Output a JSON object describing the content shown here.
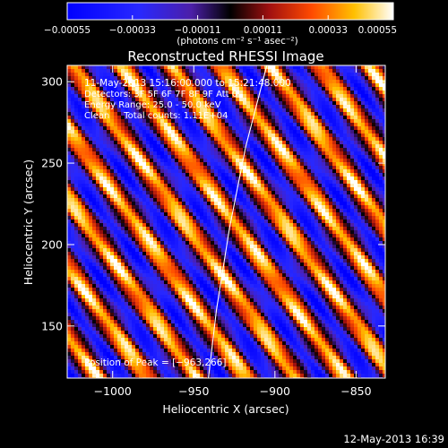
{
  "chart_data": {
    "type": "heatmap",
    "title": "Reconstructed RHESSI Image",
    "xlabel": "Heliocentric X (arcsec)",
    "ylabel": "Heliocentric Y (arcsec)",
    "xlim": [
      -1028,
      -832
    ],
    "ylim": [
      118,
      310
    ],
    "xticks": [
      -1000,
      -950,
      -900,
      -850
    ],
    "xtick_labels": [
      "−1000",
      "−950",
      "−900",
      "−850"
    ],
    "yticks": [
      150,
      200,
      250,
      300
    ],
    "ytick_labels": [
      "150",
      "200",
      "250",
      "300"
    ],
    "colorbar": {
      "min": -0.00055,
      "max": 0.00055,
      "ticks": [
        -0.00055,
        -0.00033,
        -0.00011,
        0.00011,
        0.00033,
        0.00055
      ],
      "tick_labels": [
        "−0.00055",
        "−0.00033",
        "−0.00011",
        "0.00011",
        "0.00033",
        "0.00055"
      ],
      "unit_label": "(photons cm⁻² s⁻¹ asec⁻²)"
    },
    "annotations": [
      "11-May-2013 15:16:00.000 to 15:21:48.000",
      "Detectors: 3F 5F 6F 7F 8F 9F  Att 0",
      "Energy Range: 25.0 - 50.0 keV",
      "Clean     Total counts: 1.11E+04"
    ],
    "peak_label": "Position of Peak = [−963,266]",
    "peak_position": [
      -963,
      266
    ],
    "limb_curve": [
      [
        -941,
        118
      ],
      [
        -936,
        160
      ],
      [
        -928,
        210
      ],
      [
        -918,
        260
      ],
      [
        -905,
        310
      ]
    ],
    "grid": false,
    "pattern": {
      "stripe_period_arcsec": 30.5,
      "stripe_direction": "diagonal, high-left to low-right",
      "peak_value_fraction": 1.0
    }
  },
  "footer": {
    "timestamp": "12-May-2013 16:39"
  },
  "colors": {
    "background": "#000000",
    "text": "#ffffff",
    "limb": "#ffffff"
  }
}
